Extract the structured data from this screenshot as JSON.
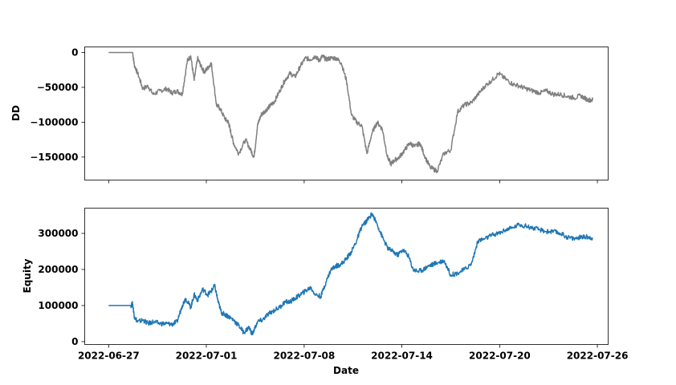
{
  "chart_data": [
    {
      "type": "line",
      "ylabel": "DD",
      "color": "#808080",
      "ylim": [
        -183000,
        8000
      ],
      "yticks": [
        0,
        -50000,
        -100000,
        -150000
      ],
      "ytick_labels": [
        "0",
        "−50000",
        "−100000",
        "−150000"
      ],
      "series": [
        {
          "x": [
            0,
            1.4,
            1.5,
            1.7,
            2.0,
            2.3,
            2.6,
            3.0,
            3.4,
            3.7,
            4.0,
            4.3,
            4.6,
            4.8,
            5.0,
            5.2,
            5.4,
            5.6,
            5.8,
            6.0,
            6.3,
            6.5,
            6.8,
            7.0,
            7.1,
            7.3,
            7.6,
            8.0,
            8.3,
            8.5,
            8.7,
            8.9,
            9.1,
            9.3,
            9.5,
            9.7,
            10.0,
            10.3,
            10.6,
            10.9,
            11.2,
            11.5,
            11.8,
            12.1,
            12.3,
            12.5,
            12.7,
            13.0,
            13.3,
            13.6,
            13.9,
            14.2,
            14.5,
            14.8,
            15.1,
            15.4,
            15.7,
            16.0,
            16.3,
            16.5,
            16.7,
            17.0,
            17.3,
            17.6,
            17.9,
            18.2,
            18.5,
            18.8,
            19.2,
            19.6,
            20.0,
            20.4,
            20.8,
            21.2,
            21.6,
            22.0,
            22.4,
            22.8,
            23.2,
            23.6,
            24.0,
            24.4,
            24.8,
            25.2,
            25.6,
            26.0,
            26.4,
            26.8,
            27.2,
            27.6,
            28.0,
            28.3
          ],
          "y": [
            0,
            0,
            -18000,
            -30000,
            -52000,
            -48000,
            -60000,
            -55000,
            -52000,
            -58000,
            -55000,
            -60000,
            -12000,
            -5000,
            -40000,
            -8000,
            -20000,
            -28000,
            -22000,
            -15000,
            -75000,
            -80000,
            -95000,
            -100000,
            -110000,
            -130000,
            -145000,
            -125000,
            -140000,
            -150000,
            -105000,
            -90000,
            -85000,
            -80000,
            -75000,
            -70000,
            -55000,
            -40000,
            -30000,
            -35000,
            -20000,
            -8000,
            -10000,
            -5000,
            -12000,
            -5000,
            -10000,
            -8000,
            -8000,
            -15000,
            -40000,
            -90000,
            -100000,
            -105000,
            -145000,
            -115000,
            -100000,
            -110000,
            -150000,
            -160000,
            -155000,
            -150000,
            -140000,
            -130000,
            -135000,
            -130000,
            -150000,
            -165000,
            -170000,
            -145000,
            -140000,
            -85000,
            -75000,
            -72000,
            -60000,
            -48000,
            -40000,
            -30000,
            -38000,
            -45000,
            -48000,
            -52000,
            -55000,
            -58000,
            -55000,
            -60000,
            -60000,
            -63000,
            -65000,
            -62000,
            -68000,
            -68000
          ]
        }
      ]
    },
    {
      "type": "line",
      "xlabel": "Date",
      "ylabel": "Equity",
      "color": "#1f77b4",
      "ylim": [
        -8000,
        370000
      ],
      "yticks": [
        0,
        100000,
        200000,
        300000
      ],
      "ytick_labels": [
        "0",
        "100000",
        "200000",
        "300000"
      ],
      "x_ticks": [
        {
          "pos": 0,
          "label": "2022-06-27"
        },
        {
          "pos": 5.71,
          "label": "2022-07-01"
        },
        {
          "pos": 11.43,
          "label": "2022-07-08"
        },
        {
          "pos": 17.14,
          "label": "2022-07-14"
        },
        {
          "pos": 22.86,
          "label": "2022-07-20"
        },
        {
          "pos": 28.57,
          "label": "2022-07-26"
        }
      ],
      "xlim": [
        -1.4,
        29.2
      ],
      "series": [
        {
          "x": [
            0,
            1.3,
            1.4,
            1.5,
            1.7,
            2.0,
            2.3,
            2.6,
            3.0,
            3.4,
            3.7,
            4.0,
            4.3,
            4.5,
            4.8,
            5.0,
            5.2,
            5.5,
            5.8,
            6.0,
            6.2,
            6.4,
            6.6,
            6.8,
            7.0,
            7.3,
            7.6,
            7.9,
            8.2,
            8.4,
            8.7,
            9.0,
            9.3,
            9.6,
            10.0,
            10.3,
            10.6,
            10.9,
            11.2,
            11.5,
            11.8,
            12.1,
            12.4,
            12.7,
            13.0,
            13.3,
            13.6,
            13.9,
            14.2,
            14.5,
            14.8,
            15.1,
            15.4,
            15.7,
            16.0,
            16.3,
            16.6,
            16.9,
            17.2,
            17.5,
            17.8,
            18.1,
            18.4,
            18.7,
            19.0,
            19.3,
            19.6,
            20.0,
            20.4,
            20.8,
            21.2,
            21.6,
            22.0,
            22.4,
            22.8,
            23.2,
            23.6,
            24.0,
            24.4,
            24.8,
            25.2,
            25.6,
            26.0,
            26.4,
            26.8,
            27.2,
            27.6,
            28.0,
            28.3
          ],
          "y": [
            100000,
            100000,
            105000,
            70000,
            55000,
            60000,
            50000,
            55000,
            50000,
            50000,
            48000,
            55000,
            100000,
            120000,
            95000,
            130000,
            115000,
            145000,
            130000,
            140000,
            155000,
            110000,
            80000,
            75000,
            70000,
            60000,
            45000,
            25000,
            40000,
            20000,
            55000,
            60000,
            75000,
            85000,
            95000,
            110000,
            110000,
            120000,
            130000,
            140000,
            150000,
            130000,
            125000,
            165000,
            200000,
            210000,
            215000,
            230000,
            250000,
            280000,
            320000,
            335000,
            355000,
            325000,
            290000,
            260000,
            250000,
            240000,
            255000,
            240000,
            200000,
            195000,
            200000,
            210000,
            215000,
            220000,
            225000,
            185000,
            190000,
            200000,
            215000,
            280000,
            285000,
            295000,
            300000,
            310000,
            315000,
            325000,
            320000,
            315000,
            310000,
            305000,
            305000,
            300000,
            290000,
            285000,
            290000,
            290000,
            288000
          ]
        }
      ]
    }
  ]
}
